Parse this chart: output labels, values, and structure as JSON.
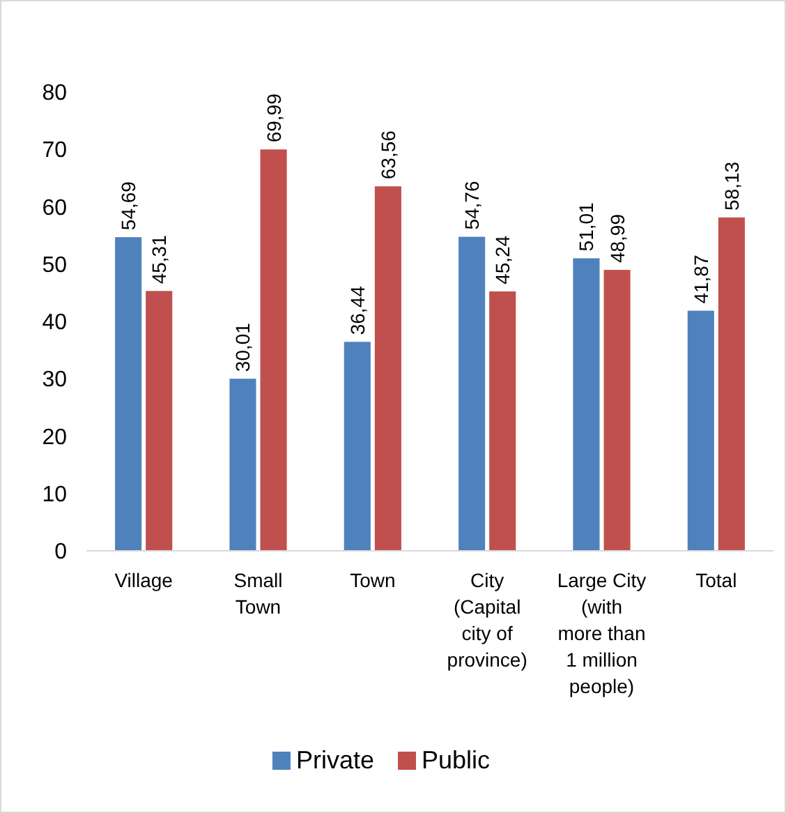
{
  "chart_data": {
    "type": "bar",
    "categories": [
      "Village",
      "Small Town",
      "Town",
      "City (Capital city of province)",
      "Large City (with more than 1 million people)",
      "Total"
    ],
    "series": [
      {
        "name": "Private",
        "color": "#4f81bd",
        "values": [
          54.69,
          30.01,
          36.44,
          54.76,
          51.01,
          41.87
        ],
        "value_labels": [
          "54,69",
          "30,01",
          "36,44",
          "54,76",
          "51,01",
          "41,87"
        ]
      },
      {
        "name": "Public",
        "color": "#c0504d",
        "values": [
          45.31,
          69.99,
          63.56,
          45.24,
          48.99,
          58.13
        ],
        "value_labels": [
          "45,31",
          "69,99",
          "63,56",
          "45,24",
          "48,99",
          "58,13"
        ]
      }
    ],
    "ylim": [
      0,
      80
    ],
    "yticks": [
      0,
      10,
      20,
      30,
      40,
      50,
      60,
      70,
      80
    ],
    "grid": false,
    "legend": "bottom"
  }
}
